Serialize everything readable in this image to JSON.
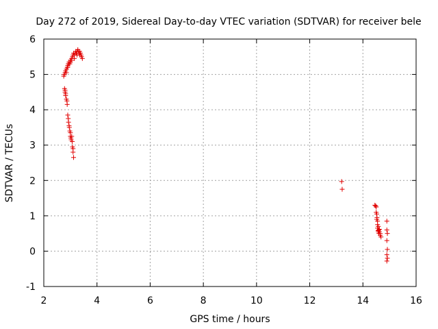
{
  "chart_data": {
    "type": "scatter",
    "title": "Day 272 of 2019, Sidereal Day-to-day VTEC variation (SDTVAR) for receiver bele",
    "xlabel": "GPS time / hours",
    "ylabel": "SDTVAR / TECUs",
    "xlim": [
      2,
      16
    ],
    "ylim": [
      -1,
      6
    ],
    "xticks": [
      2,
      4,
      6,
      8,
      10,
      12,
      14,
      16
    ],
    "yticks": [
      -1,
      0,
      1,
      2,
      3,
      4,
      5,
      6
    ],
    "grid": true,
    "marker": "+",
    "color": "#e00000",
    "series": [
      {
        "name": "SDTVAR",
        "points": [
          [
            2.75,
            4.95
          ],
          [
            2.77,
            5.0
          ],
          [
            2.8,
            5.05
          ],
          [
            2.82,
            5.1
          ],
          [
            2.85,
            5.15
          ],
          [
            2.88,
            5.2
          ],
          [
            2.9,
            5.25
          ],
          [
            2.92,
            5.3
          ],
          [
            2.95,
            5.35
          ],
          [
            2.98,
            5.3
          ],
          [
            3.0,
            5.35
          ],
          [
            3.02,
            5.4
          ],
          [
            3.05,
            5.45
          ],
          [
            3.08,
            5.5
          ],
          [
            3.1,
            5.55
          ],
          [
            3.12,
            5.6
          ],
          [
            3.15,
            5.55
          ],
          [
            3.18,
            5.6
          ],
          [
            3.2,
            5.65
          ],
          [
            3.22,
            5.6
          ],
          [
            3.25,
            5.65
          ],
          [
            3.28,
            5.7
          ],
          [
            3.3,
            5.65
          ],
          [
            3.32,
            5.6
          ],
          [
            3.35,
            5.65
          ],
          [
            3.38,
            5.6
          ],
          [
            3.4,
            5.55
          ],
          [
            3.42,
            5.5
          ],
          [
            3.45,
            5.45
          ],
          [
            3.0,
            5.4
          ],
          [
            2.95,
            5.3
          ],
          [
            2.85,
            5.05
          ],
          [
            2.9,
            5.2
          ],
          [
            3.05,
            5.4
          ],
          [
            3.15,
            5.45
          ],
          [
            3.25,
            5.55
          ],
          [
            3.35,
            5.55
          ],
          [
            2.78,
            4.6
          ],
          [
            2.8,
            4.55
          ],
          [
            2.8,
            4.5
          ],
          [
            2.82,
            4.45
          ],
          [
            2.82,
            4.4
          ],
          [
            2.85,
            4.3
          ],
          [
            2.87,
            4.25
          ],
          [
            2.88,
            4.15
          ],
          [
            2.9,
            3.85
          ],
          [
            2.92,
            3.75
          ],
          [
            2.93,
            3.65
          ],
          [
            2.95,
            3.55
          ],
          [
            2.96,
            3.5
          ],
          [
            2.98,
            3.4
          ],
          [
            3.0,
            3.35
          ],
          [
            3.0,
            3.25
          ],
          [
            3.02,
            3.2
          ],
          [
            3.03,
            3.15
          ],
          [
            3.05,
            3.25
          ],
          [
            3.07,
            3.1
          ],
          [
            3.08,
            2.95
          ],
          [
            3.1,
            2.9
          ],
          [
            3.1,
            2.8
          ],
          [
            3.12,
            2.65
          ],
          [
            13.2,
            1.97
          ],
          [
            13.22,
            1.75
          ],
          [
            14.45,
            1.3
          ],
          [
            14.48,
            1.28
          ],
          [
            14.5,
            1.25
          ],
          [
            14.5,
            1.1
          ],
          [
            14.52,
            1.05
          ],
          [
            14.53,
            0.95
          ],
          [
            14.52,
            0.9
          ],
          [
            14.55,
            0.85
          ],
          [
            14.55,
            0.75
          ],
          [
            14.58,
            0.7
          ],
          [
            14.55,
            0.65
          ],
          [
            14.6,
            0.6
          ],
          [
            14.58,
            0.55
          ],
          [
            14.62,
            0.55
          ],
          [
            14.6,
            0.5
          ],
          [
            14.65,
            0.5
          ],
          [
            14.65,
            0.45
          ],
          [
            14.68,
            0.4
          ],
          [
            14.62,
            0.62
          ],
          [
            14.57,
            0.58
          ],
          [
            14.9,
            0.85
          ],
          [
            14.9,
            0.6
          ],
          [
            14.92,
            0.5
          ],
          [
            14.9,
            0.3
          ],
          [
            14.92,
            0.05
          ],
          [
            14.9,
            -0.1
          ],
          [
            14.92,
            -0.2
          ],
          [
            14.9,
            -0.28
          ]
        ]
      }
    ]
  }
}
